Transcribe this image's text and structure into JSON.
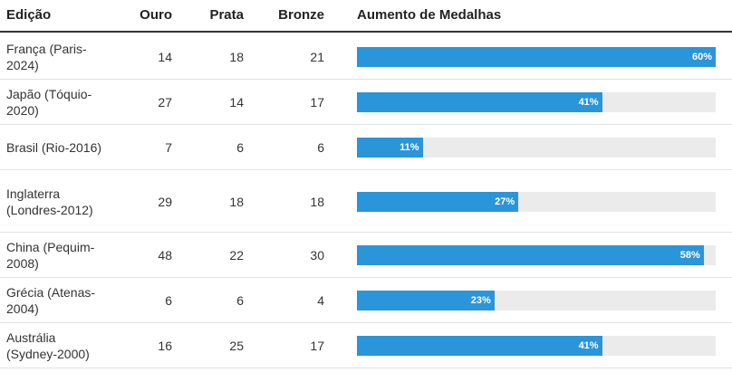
{
  "chart_data": {
    "type": "table",
    "columns": [
      "Edição",
      "Ouro",
      "Prata",
      "Bronze",
      "Aumento de Medalhas"
    ],
    "rows": [
      {
        "edicao": "França (Paris-2024)",
        "ouro": "14",
        "prata": "18",
        "bronze": "21",
        "aumento": 60,
        "aumento_label": "60%"
      },
      {
        "edicao": "Japão (Tóquio-2020)",
        "ouro": "27",
        "prata": "14",
        "bronze": "17",
        "aumento": 41,
        "aumento_label": "41%"
      },
      {
        "edicao": "Brasil (Rio-2016)",
        "ouro": "7",
        "prata": "6",
        "bronze": "6",
        "aumento": 11,
        "aumento_label": "11%"
      },
      {
        "edicao": "Inglaterra (Londres-2012)",
        "ouro": "29",
        "prata": "18",
        "bronze": "18",
        "aumento": 27,
        "aumento_label": "27%"
      },
      {
        "edicao": "China (Pequim-2008)",
        "ouro": "48",
        "prata": "22",
        "bronze": "30",
        "aumento": 58,
        "aumento_label": "58%"
      },
      {
        "edicao": "Grécia (Atenas-2004)",
        "ouro": "6",
        "prata": "6",
        "bronze": "4",
        "aumento": 23,
        "aumento_label": "23%"
      },
      {
        "edicao": "Austrália (Sydney-2000)",
        "ouro": "16",
        "prata": "25",
        "bronze": "17",
        "aumento": 41,
        "aumento_label": "41%"
      }
    ],
    "bar_max": 60,
    "colors": {
      "bar": "#2a95d9",
      "track": "#ebebeb"
    }
  }
}
